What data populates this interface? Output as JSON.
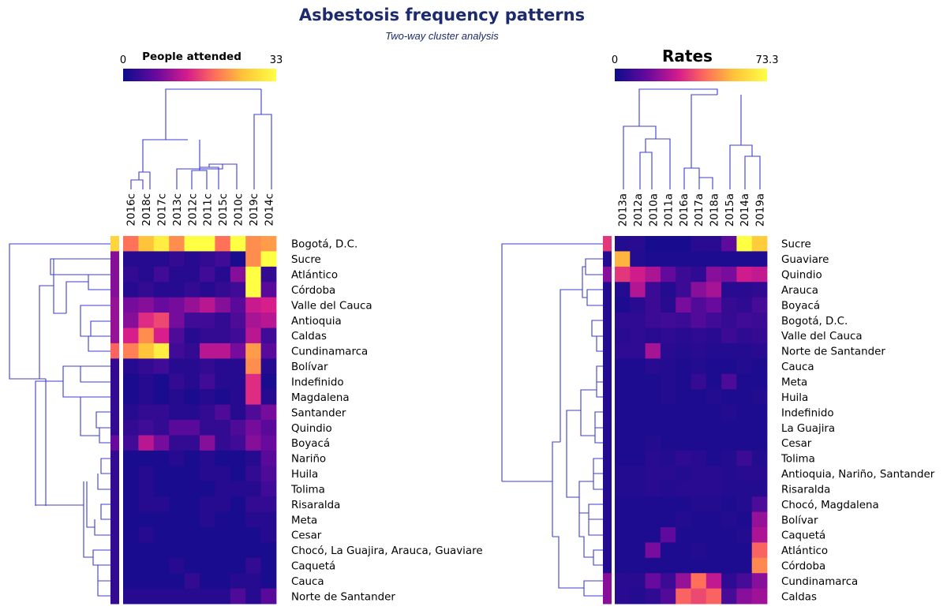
{
  "title": "Asbestosis frequency patterns",
  "subtitle": "Two-way cluster analysis",
  "chart_data": [
    {
      "type": "heatmap",
      "name": "left",
      "colorbar": {
        "title": "People attended",
        "min_label": "0",
        "max_label": "33",
        "min": 0,
        "max": 33,
        "palette": [
          "#0c0c8c",
          "#6a0a9e",
          "#d61c8c",
          "#ff6f5a",
          "#ffc23a",
          "#ffff44"
        ]
      },
      "columns": [
        "2016c",
        "2018c",
        "2017c",
        "2013c",
        "2012c",
        "2011c",
        "2015c",
        "2010c",
        "2019c",
        "2014c"
      ],
      "rows": [
        "Bogotá, D.C.",
        "Sucre",
        "Atlántico",
        "Córdoba",
        "Valle del Cauca",
        "Antioquia",
        "Caldas",
        "Cundinamarca",
        "Bolívar",
        "Indefinido",
        "Magdalena",
        "Santander",
        "Quindio",
        "Boyacá",
        "Nariño",
        "Huila",
        "Tolima",
        "Risaralda",
        "Meta",
        "Cesar",
        "Chocó, La Guajira, Arauca, Guaviare",
        "Caquetá",
        "Cauca",
        "Norte de Santander"
      ],
      "row_strip": [
        28,
        9,
        9,
        9,
        10,
        10,
        10,
        19,
        3,
        3,
        3,
        3,
        3,
        7,
        3,
        3,
        3,
        3,
        3,
        3,
        3,
        3,
        3,
        3
      ],
      "values": [
        [
          20,
          26,
          31,
          22,
          33,
          33,
          20,
          33,
          22,
          23
        ],
        [
          2,
          2,
          2,
          3,
          2,
          3,
          4,
          1,
          22,
          33
        ],
        [
          3,
          2,
          4,
          2,
          2,
          4,
          2,
          9,
          33,
          3
        ],
        [
          2,
          3,
          2,
          2,
          3,
          2,
          3,
          4,
          33,
          6
        ],
        [
          8,
          9,
          7,
          8,
          10,
          12,
          9,
          6,
          13,
          14
        ],
        [
          9,
          15,
          17,
          8,
          4,
          4,
          3,
          5,
          11,
          12
        ],
        [
          14,
          22,
          14,
          5,
          2,
          3,
          3,
          4,
          12,
          4
        ],
        [
          21,
          26,
          31,
          4,
          3,
          12,
          12,
          8,
          23,
          6
        ],
        [
          2,
          3,
          4,
          2,
          2,
          3,
          2,
          2,
          22,
          2
        ],
        [
          1,
          2,
          1,
          3,
          2,
          4,
          2,
          2,
          15,
          1
        ],
        [
          1,
          2,
          1,
          2,
          1,
          2,
          1,
          2,
          15,
          2
        ],
        [
          2,
          3,
          3,
          2,
          2,
          3,
          5,
          2,
          5,
          8
        ],
        [
          3,
          4,
          3,
          6,
          6,
          3,
          3,
          5,
          8,
          6
        ],
        [
          4,
          12,
          8,
          3,
          3,
          9,
          3,
          4,
          9,
          7
        ],
        [
          1,
          1,
          1,
          2,
          1,
          2,
          1,
          1,
          2,
          6
        ],
        [
          1,
          2,
          1,
          1,
          1,
          2,
          2,
          1,
          3,
          5
        ],
        [
          1,
          2,
          1,
          1,
          1,
          1,
          2,
          2,
          2,
          4
        ],
        [
          1,
          2,
          2,
          1,
          1,
          2,
          2,
          1,
          3,
          3
        ],
        [
          1,
          1,
          1,
          1,
          1,
          2,
          1,
          1,
          2,
          2
        ],
        [
          1,
          2,
          1,
          1,
          1,
          1,
          1,
          1,
          1,
          2
        ],
        [
          1,
          1,
          1,
          1,
          1,
          1,
          1,
          1,
          1,
          1
        ],
        [
          1,
          1,
          1,
          2,
          1,
          1,
          1,
          1,
          3,
          1
        ],
        [
          1,
          1,
          1,
          1,
          3,
          1,
          1,
          2,
          2,
          1
        ],
        [
          2,
          2,
          2,
          2,
          2,
          2,
          2,
          5,
          2,
          6
        ]
      ]
    },
    {
      "type": "heatmap",
      "name": "right",
      "colorbar": {
        "title": "Rates",
        "min_label": "0",
        "max_label": "73.3",
        "min": 0,
        "max": 73.3,
        "palette": [
          "#0c0c8c",
          "#6a0a9e",
          "#d61c8c",
          "#ff6f5a",
          "#ffc23a",
          "#ffff44"
        ]
      },
      "columns": [
        "2013a",
        "2012a",
        "2010a",
        "2011a",
        "2016a",
        "2017a",
        "2018a",
        "2015a",
        "2014a",
        "2019a"
      ],
      "rows": [
        "Sucre",
        "Guaviare",
        "Quindio",
        "Arauca",
        "Boyacá",
        "Bogotá, D.C.",
        "Valle del Cauca",
        "Norte de Santander",
        "Cauca",
        "Meta",
        "Huila",
        "Indefinido",
        "La Guajira",
        "Cesar",
        "Tolima",
        "Antioquia, Nariño, Santander",
        "Risaralda",
        "Chocó, Magdalena",
        "Bolívar",
        "Caquetá",
        "Atlántico",
        "Córdoba",
        "Cundinamarca",
        "Caldas"
      ],
      "row_strip": [
        35,
        4,
        20,
        4,
        4,
        4,
        4,
        4,
        4,
        4,
        4,
        4,
        4,
        4,
        4,
        4,
        4,
        4,
        4,
        4,
        4,
        4,
        20,
        20
      ],
      "values": [
        [
          4,
          5,
          2,
          2,
          2,
          5,
          5,
          14,
          73.3,
          60
        ],
        [
          55,
          4,
          3,
          3,
          3,
          3,
          3,
          3,
          3,
          3
        ],
        [
          35,
          30,
          25,
          15,
          8,
          6,
          20,
          18,
          30,
          28
        ],
        [
          4,
          26,
          8,
          4,
          8,
          20,
          24,
          5,
          5,
          6
        ],
        [
          3,
          5,
          8,
          5,
          18,
          12,
          16,
          7,
          6,
          10
        ],
        [
          6,
          6,
          8,
          9,
          8,
          12,
          9,
          7,
          9,
          8
        ],
        [
          5,
          6,
          5,
          6,
          5,
          6,
          5,
          8,
          6,
          7
        ],
        [
          6,
          6,
          24,
          5,
          4,
          5,
          4,
          4,
          4,
          5
        ],
        [
          3,
          3,
          5,
          4,
          3,
          4,
          3,
          3,
          4,
          3
        ],
        [
          3,
          3,
          3,
          4,
          3,
          7,
          3,
          11,
          3,
          3
        ],
        [
          3,
          3,
          3,
          4,
          3,
          3,
          4,
          3,
          3,
          4
        ],
        [
          3,
          3,
          3,
          3,
          3,
          3,
          3,
          4,
          3,
          3
        ],
        [
          3,
          3,
          3,
          3,
          3,
          3,
          3,
          3,
          3,
          3
        ],
        [
          3,
          3,
          4,
          3,
          3,
          3,
          3,
          3,
          3,
          3
        ],
        [
          3,
          3,
          5,
          4,
          6,
          5,
          3,
          4,
          8,
          4
        ],
        [
          4,
          4,
          5,
          5,
          4,
          5,
          5,
          4,
          5,
          5
        ],
        [
          4,
          4,
          5,
          4,
          5,
          5,
          5,
          4,
          4,
          4
        ],
        [
          3,
          3,
          3,
          3,
          3,
          4,
          4,
          3,
          4,
          11
        ],
        [
          3,
          3,
          3,
          3,
          4,
          3,
          3,
          4,
          3,
          22
        ],
        [
          3,
          3,
          3,
          14,
          3,
          3,
          3,
          3,
          4,
          25
        ],
        [
          3,
          3,
          18,
          3,
          3,
          4,
          3,
          3,
          3,
          42
        ],
        [
          3,
          3,
          3,
          3,
          3,
          3,
          3,
          3,
          3,
          48
        ],
        [
          5,
          5,
          16,
          8,
          22,
          44,
          28,
          6,
          10,
          20
        ],
        [
          5,
          4,
          6,
          12,
          42,
          38,
          42,
          10,
          20,
          23
        ]
      ]
    }
  ]
}
